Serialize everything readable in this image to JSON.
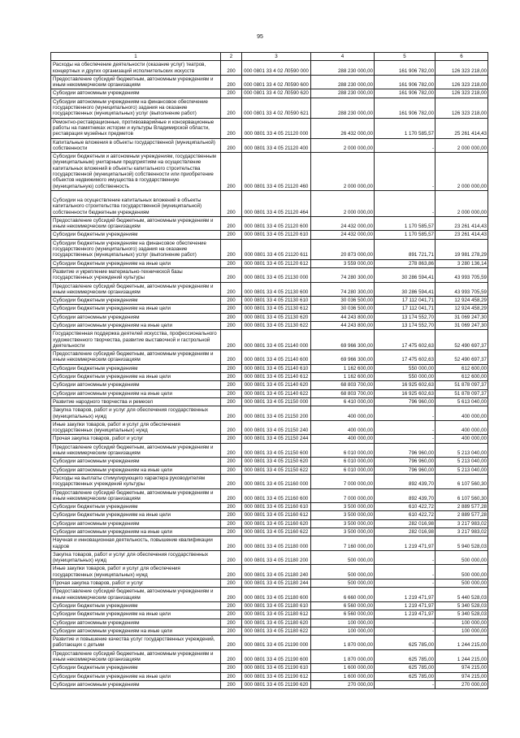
{
  "page_number": "95",
  "table": {
    "header": [
      "1",
      "2",
      "3",
      "4",
      "5",
      "6"
    ],
    "rows": [
      [
        "Расходы на обеспечение деятельности (оказание услуг) театров, концертных и других организаций исполнительских искусств",
        "200",
        "000 0801 33 4 02 Л0590 000",
        "288 230 000,00",
        "161 906 782,00",
        "126 323 218,00"
      ],
      [
        "Предоставление субсидий бюджетным, автономным учреждениям и иным некоммерческим организациям",
        "200",
        "000 0801 33 4 02 Л0590 600",
        "288 230 000,00",
        "161 906 782,00",
        "126 323 218,00"
      ],
      [
        "Субсидии автономным учреждениям",
        "200",
        "000 0801 33 4 02 Л0590 620",
        "288 230 000,00",
        "161 906 782,00",
        "126 323 218,00"
      ],
      [
        "Субсидии автономным учреждениям на финансовое обеспечение государственного (муниципального) задания на оказание государственных (муниципальных) услуг (выполнение работ)",
        "200",
        "000 0801 33 4 02 Л0590 621",
        "288 230 000,00",
        "161 906 782,00",
        "126 323 218,00"
      ],
      [
        "Ремонтно-реставрационные, противоаварийные и консервационные работы на памятниках истории и культуры Владимирской области, реставрация музейных предметов",
        "200",
        "000 0801 33 4 05 21120 000",
        "26 432 000,00",
        "1 170 585,57",
        "25 261 414,43"
      ],
      [
        "Капитальные вложения в объекты государственной (муниципальной) собственности",
        "200",
        "000 0801 33 4 05 21120 400",
        "2 000 000,00",
        "-",
        "2 000 000,00"
      ],
      [
        "Субсидии бюджетным и автономным учреждениям, государственным (муниципальным) унитарным предприятиям на осуществление капитальных вложений в объекты капитального строительства государственной (муниципальной) собственности или приобретение объектов недвижимого имущества в государственную (муниципальную) собственность",
        "200",
        "000 0801 33 4 05 21120 460",
        "2 000 000,00",
        "-",
        "2 000 000,00"
      ],
      [
        "Субсидии на осуществление капитальных вложений в объекты капитального строительства государственной (муниципальной) собственности бюджетным учреждениям",
        "200",
        "000 0801 33 4 05 21120 464",
        "2 000 000,00",
        "-",
        "2 000 000,00"
      ],
      [
        "Предоставление субсидий бюджетным, автономным учреждениям и иным некоммерческим организациям",
        "200",
        "000 0801 33 4 05 21120 600",
        "24 432 000,00",
        "1 170 585,57",
        "23 261 414,43"
      ],
      [
        "Субсидии бюджетным учреждениям",
        "200",
        "000 0801 33 4 05 21120 610",
        "24 432 000,00",
        "1 170 585,57",
        "23 261 414,43"
      ],
      [
        "Субсидии бюджетным учреждениям на финансовое обеспечение государственного (муниципального) задания на оказание государственных (муниципальных) услуг (выполнение работ)",
        "200",
        "000 0801 33 4 05 21120 611",
        "20 873 000,00",
        "891 721,71",
        "19 981 278,29"
      ],
      [
        "Субсидии бюджетным учреждениям на иные цели",
        "200",
        "000 0801 33 4 05 21120 612",
        "3 559 000,00",
        "278 863,86",
        "3 280 136,14"
      ],
      [
        "Развитие и укрепление материально-технической базы государственных учреждений культуры",
        "200",
        "000 0801 33 4 05 21130 000",
        "74 280 300,00",
        "30 286 594,41",
        "43 993 705,59"
      ],
      [
        "Предоставление субсидий бюджетным, автономным учреждениям и иным некоммерческим организациям",
        "200",
        "000 0801 33 4 05 21130 600",
        "74 280 300,00",
        "30 286 594,41",
        "43 993 705,59"
      ],
      [
        "Субсидии бюджетным учреждениям",
        "200",
        "000 0801 33 4 05 21130 610",
        "30 036 500,00",
        "17 112 041,71",
        "12 924 458,29"
      ],
      [
        "Субсидии бюджетным учреждениям на иные цели",
        "200",
        "000 0801 33 4 05 21130 612",
        "30 036 500,00",
        "17 112 041,71",
        "12 924 458,29"
      ],
      [
        "Субсидии автономным учреждениям",
        "200",
        "000 0801 33 4 05 21130 620",
        "44 243 800,00",
        "13 174 552,70",
        "31 069 247,30"
      ],
      [
        "Субсидии автономным учреждениям на иные цели",
        "200",
        "000 0801 33 4 05 21130 622",
        "44 243 800,00",
        "13 174 552,70",
        "31 069 247,30"
      ],
      [
        "Государственная поддержка деятелей искусства, профессионального художественного творчества, развитие выставочной и гастрольной деятельности",
        "200",
        "000 0801 33 4 05 21140 000",
        "69 966 300,00",
        "17 475 602,63",
        "52 490 697,37"
      ],
      [
        "Предоставление субсидий бюджетным, автономным учреждениям и иным некоммерческим организациям",
        "200",
        "000 0801 33 4 05 21140 600",
        "69 966 300,00",
        "17 475 602,63",
        "52 490 697,37"
      ],
      [
        "Субсидии бюджетным учреждениям",
        "200",
        "000 0801 33 4 05 21140 610",
        "1 162 600,00",
        "550 000,00",
        "612 600,00"
      ],
      [
        "Субсидии бюджетным учреждениям на иные цели",
        "200",
        "000 0801 33 4 05 21140 612",
        "1 162 600,00",
        "550 000,00",
        "612 600,00"
      ],
      [
        "Субсидии автономным учреждениям",
        "200",
        "000 0801 33 4 05 21140 620",
        "68 803 700,00",
        "16 925 602,63",
        "51 878 097,37"
      ],
      [
        "Субсидии автономным учреждениям на иные цели",
        "200",
        "000 0801 33 4 05 21140 622",
        "68 803 700,00",
        "16 925 602,63",
        "51 878 097,37"
      ],
      [
        "Развитие народного творчества и ремесел",
        "200",
        "000 0801 33 4 05 21150 000",
        "6 410 000,00",
        "796 960,00",
        "5 613 040,00"
      ],
      [
        "Закупка товаров, работ и услуг для обеспечения государственных (муниципальных) нужд",
        "200",
        "000 0801 33 4 05 21150 200",
        "400 000,00",
        "-",
        "400 000,00"
      ],
      [
        "Иные закупки товаров, работ и услуг для обеспечения государственных (муниципальных) нужд",
        "200",
        "000 0801 33 4 05 21150 240",
        "400 000,00",
        "-",
        "400 000,00"
      ],
      [
        "Прочая закупка товаров, работ и услуг",
        "200",
        "000 0801 33 4 05 21150 244",
        "400 000,00",
        "-",
        "400 000,00"
      ],
      [
        "Предоставление субсидий бюджетным, автономным учреждениям и иным некоммерческим организациям",
        "200",
        "000 0801 33 4 05 21150 600",
        "6 010 000,00",
        "796 960,00",
        "5 213 040,00"
      ],
      [
        "Субсидии автономным учреждениям",
        "200",
        "000 0801 33 4 05 21150 620",
        "6 010 000,00",
        "796 960,00",
        "5 213 040,00"
      ],
      [
        "Субсидии автономным учреждениям на иные цели",
        "200",
        "000 0801 33 4 05 21150 622",
        "6 010 000,00",
        "796 960,00",
        "5 213 040,00"
      ],
      [
        "Расходы на выплаты стимулирующего характера руководителям государственных учреждений культуры",
        "200",
        "000 0801 33 4 05 21160 000",
        "7 000 000,00",
        "892 439,70",
        "6 107 560,30"
      ],
      [
        "Предоставление субсидий бюджетным, автономным учреждениям и иным некоммерческим организациям",
        "200",
        "000 0801 33 4 05 21160 600",
        "7 000 000,00",
        "892 439,70",
        "6 107 560,30"
      ],
      [
        "Субсидии бюджетным учреждениям",
        "200",
        "000 0801 33 4 05 21160 610",
        "3 500 000,00",
        "610 422,72",
        "2 889 577,28"
      ],
      [
        "Субсидии бюджетным учреждениям на иные цели",
        "200",
        "000 0801 33 4 05 21160 612",
        "3 500 000,00",
        "610 422,72",
        "2 889 577,28"
      ],
      [
        "Субсидии автономным учреждениям",
        "200",
        "000 0801 33 4 05 21160 620",
        "3 500 000,00",
        "282 016,98",
        "3 217 983,02"
      ],
      [
        "Субсидии автономным учреждениям на иные цели",
        "200",
        "000 0801 33 4 05 21160 622",
        "3 500 000,00",
        "282 016,98",
        "3 217 983,02"
      ],
      [
        "Научная и инновационная деятельность, повышение квалификации кадров",
        "200",
        "000 0801 33 4 05 21180 000",
        "7 160 000,00",
        "1 219 471,97",
        "5 940 528,03"
      ],
      [
        "Закупка товаров, работ и услуг для обеспечения государственных (муниципальных) нужд",
        "200",
        "000 0801 33 4 05 21180 200",
        "500 000,00",
        "-",
        "500 000,00"
      ],
      [
        "Иные закупки товаров, работ и услуг для обеспечения государственных (муниципальных) нужд",
        "200",
        "000 0801 33 4 05 21180 240",
        "500 000,00",
        "-",
        "500 000,00"
      ],
      [
        "Прочая закупка товаров, работ и услуг",
        "200",
        "000 0801 33 4 05 21180 244",
        "500 000,00",
        "-",
        "500 000,00"
      ],
      [
        "Предоставление субсидий бюджетным, автономным учреждениям и иным некоммерческим организациям",
        "200",
        "000 0801 33 4 05 21180 600",
        "6 660 000,00",
        "1 219 471,97",
        "5 440 528,03"
      ],
      [
        "Субсидии бюджетным учреждениям",
        "200",
        "000 0801 33 4 05 21180 610",
        "6 560 000,00",
        "1 219 471,97",
        "5 340 528,03"
      ],
      [
        "Субсидии бюджетным учреждениям на иные цели",
        "200",
        "000 0801 33 4 05 21180 612",
        "6 560 000,00",
        "1 219 471,97",
        "5 340 528,03"
      ],
      [
        "Субсидии автономным учреждениям",
        "200",
        "000 0801 33 4 05 21180 620",
        "100 000,00",
        "-",
        "100 000,00"
      ],
      [
        "Субсидии автономным учреждениям на иные цели",
        "200",
        "000 0801 33 4 05 21180 622",
        "100 000,00",
        "-",
        "100 000,00"
      ],
      [
        "Развитие и повышение качества услуг государственных учреждений, работающих с детьми",
        "200",
        "000 0801 33 4 05 21190 000",
        "1 870 000,00",
        "625 785,00",
        "1 244 215,00"
      ],
      [
        "Предоставление субсидий бюджетным, автономным учреждениям и иным некоммерческим организациям",
        "200",
        "000 0801 33 4 05 21190 600",
        "1 870 000,00",
        "625 785,00",
        "1 244 215,00"
      ],
      [
        "Субсидии бюджетным учреждениям",
        "200",
        "000 0801 33 4 05 21190 610",
        "1 600 000,00",
        "625 785,00",
        "974 215,00"
      ],
      [
        "Субсидии бюджетным учреждениям на иные цели",
        "200",
        "000 0801 33 4 05 21190 612",
        "1 600 000,00",
        "625 785,00",
        "974 215,00"
      ],
      [
        "Субсидии автономным учреждениям",
        "200",
        "000 0801 33 4 05 21190 620",
        "270 000,00",
        "-",
        "270 000,00"
      ]
    ]
  }
}
